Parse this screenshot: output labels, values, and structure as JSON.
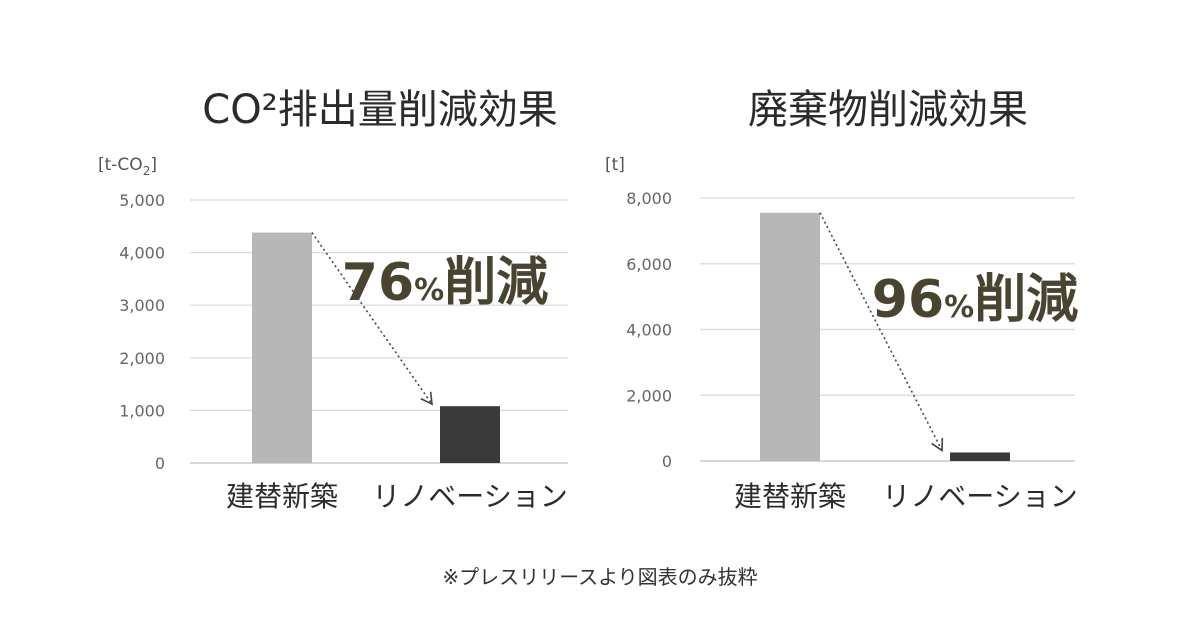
{
  "chart_data": [
    {
      "type": "bar",
      "title": "CO²排出量削減効果",
      "unit_label": "[t-CO",
      "unit_sub": "2",
      "unit_close": "]",
      "categories": [
        "建替新築",
        "リノベーション"
      ],
      "values": [
        4380,
        1080
      ],
      "ylim": [
        0,
        5000
      ],
      "ticks": [
        "0",
        "1,000",
        "2,000",
        "3,000",
        "4,000",
        "5,000"
      ],
      "tick_values": [
        0,
        1000,
        2000,
        3000,
        4000,
        5000
      ],
      "grid": true,
      "annotation": {
        "number": "76",
        "percent": "%",
        "suffix": "削減"
      },
      "colors": [
        "#b7b7b7",
        "#3a3a3a"
      ]
    },
    {
      "type": "bar",
      "title": "廃棄物削減効果",
      "unit_label": "[t]",
      "categories": [
        "建替新築",
        "リノベーション"
      ],
      "values": [
        7550,
        260
      ],
      "ylim": [
        0,
        8000
      ],
      "ticks": [
        "0",
        "2,000",
        "4,000",
        "6,000",
        "8,000"
      ],
      "tick_values": [
        0,
        2000,
        4000,
        6000,
        8000
      ],
      "grid": true,
      "annotation": {
        "number": "96",
        "percent": "%",
        "suffix": "削減"
      },
      "colors": [
        "#b7b7b7",
        "#3a3a3a"
      ]
    }
  ],
  "footnote": "※プレスリリースより図表のみ抜粋"
}
